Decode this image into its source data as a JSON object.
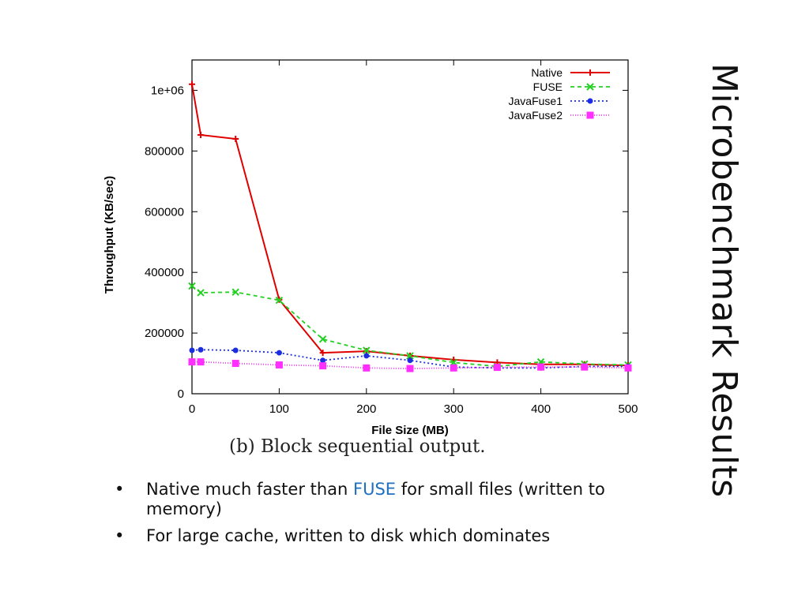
{
  "slide": {
    "title": "Microbenchmark Results",
    "caption": "(b) Block sequential output.",
    "bullets": [
      {
        "pre": "Native much faster than ",
        "highlight": "FUSE",
        "post": " for small files (written to memory)"
      },
      {
        "pre": "For large cache, written to disk which dominates",
        "highlight": "",
        "post": ""
      }
    ],
    "bullet_glyph": "•",
    "highlight_color": "#1f6fc0"
  },
  "chart_data": {
    "type": "line",
    "title": "",
    "xlabel": "File Size (MB)",
    "ylabel": "Throughput (KB/sec)",
    "xlim": [
      0,
      500
    ],
    "ylim": [
      0,
      1100000
    ],
    "xticks": [
      0,
      100,
      200,
      300,
      400,
      500
    ],
    "yticks": [
      0,
      200000,
      400000,
      600000,
      800000,
      1000000
    ],
    "ytick_labels": [
      "0",
      "200000",
      "400000",
      "600000",
      "800000",
      "1e+06"
    ],
    "legend_position": "top-right",
    "grid": false,
    "series": [
      {
        "name": "Native",
        "color": "#e00000",
        "dash": "",
        "marker": "plus",
        "x": [
          0,
          10,
          50,
          100,
          150,
          200,
          250,
          300,
          350,
          400,
          450,
          500
        ],
        "y": [
          1020000,
          853000,
          840000,
          310000,
          135000,
          140000,
          125000,
          112000,
          103000,
          97000,
          97000,
          93000
        ]
      },
      {
        "name": "FUSE",
        "color": "#22d022",
        "dash": "5,4",
        "marker": "x",
        "x": [
          0,
          10,
          50,
          100,
          150,
          200,
          250,
          300,
          350,
          400,
          450,
          500
        ],
        "y": [
          355000,
          333000,
          335000,
          308000,
          180000,
          143000,
          125000,
          103000,
          90000,
          105000,
          98000,
          95000
        ]
      },
      {
        "name": "JavaFuse1",
        "color": "#1a2ee0",
        "dash": "2,3",
        "marker": "circle",
        "x": [
          0,
          10,
          50,
          100,
          150,
          200,
          250,
          300,
          350,
          400,
          450,
          500
        ],
        "y": [
          143000,
          145000,
          143000,
          135000,
          110000,
          125000,
          110000,
          88000,
          85000,
          85000,
          90000,
          90000
        ]
      },
      {
        "name": "JavaFuse2",
        "color": "#ff30ff",
        "dash": "1,2",
        "marker": "square",
        "x": [
          0,
          10,
          50,
          100,
          150,
          200,
          250,
          300,
          350,
          400,
          450,
          500
        ],
        "y": [
          105000,
          105000,
          100000,
          95000,
          92000,
          85000,
          83000,
          85000,
          87000,
          88000,
          88000,
          85000
        ]
      }
    ]
  }
}
